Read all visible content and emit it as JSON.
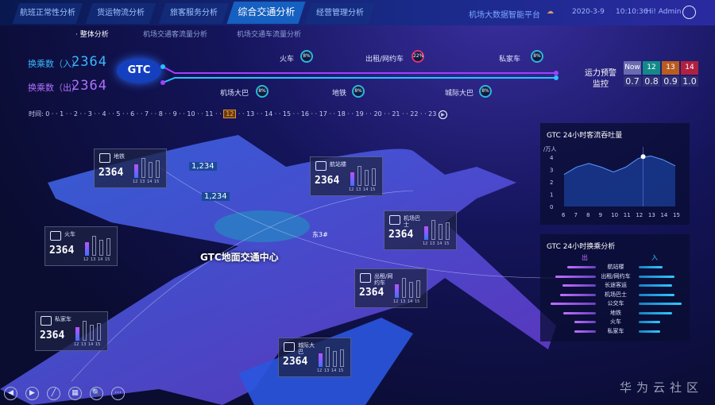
{
  "nav": {
    "tabs": [
      "航班正常性分析",
      "货运物流分析",
      "旅客服务分析",
      "综合交通分析",
      "经营管理分析"
    ],
    "active": "综合交通分析",
    "platform": "机场大数据智能平台",
    "date": "2020-3-9",
    "time": "10:10:36",
    "user": "Hi! Admin"
  },
  "subtabs": [
    "· 整体分析",
    "机场交通客流量分析",
    "机场交通车流量分析"
  ],
  "summary": {
    "in_label": "换乘数（入）",
    "in_value": "2364",
    "out_label": "换乘数（出）",
    "out_value": "2364",
    "hub": "GTC"
  },
  "stops_top": [
    {
      "name": "火车",
      "pct": "8%"
    },
    {
      "name": "出租/网约车",
      "pct": "22%"
    },
    {
      "name": "私家车",
      "pct": "8%"
    }
  ],
  "stops_bottom": [
    {
      "name": "机场大巴",
      "pct": "8%"
    },
    {
      "name": "地铁",
      "pct": "8%"
    },
    {
      "name": "城际大巴",
      "pct": "8%"
    }
  ],
  "warning": {
    "label1": "运力预警",
    "label2": "监控",
    "headers": [
      "Now",
      "12",
      "13",
      "14"
    ],
    "values": [
      "0.7",
      "0.8",
      "0.9",
      "1.0"
    ],
    "colors": [
      "#6a6ab0",
      "#138a8a",
      "#b85c20",
      "#b02040"
    ]
  },
  "timeline": {
    "label": "时间:",
    "hours": [
      "0",
      "1",
      "2",
      "3",
      "4",
      "5",
      "6",
      "7",
      "8",
      "9",
      "10",
      "11",
      "12",
      "13",
      "14",
      "15",
      "16",
      "17",
      "18",
      "19",
      "20",
      "21",
      "22",
      "23"
    ],
    "current": "12"
  },
  "map": {
    "center_label": "GTC地面交通中心",
    "flags": [
      "1,234",
      "1,234"
    ],
    "inner_label": "东3#"
  },
  "cards": [
    {
      "name": "地铁",
      "value": "2364",
      "ticks": [
        "12",
        "13",
        "14",
        "15"
      ],
      "bars": [
        0.6,
        0.9,
        0.7,
        0.8
      ]
    },
    {
      "name": "航站楼",
      "value": "2364",
      "ticks": [
        "12",
        "13",
        "14",
        "15"
      ],
      "bars": [
        0.6,
        0.9,
        0.7,
        0.8
      ]
    },
    {
      "name": "机场巴士",
      "value": "2364",
      "ticks": [
        "12",
        "13",
        "14",
        "15"
      ],
      "bars": [
        0.6,
        0.9,
        0.7,
        0.8
      ]
    },
    {
      "name": "火车",
      "value": "2364",
      "ticks": [
        "12",
        "13",
        "14",
        "15"
      ],
      "bars": [
        0.6,
        0.9,
        0.7,
        0.8
      ]
    },
    {
      "name": "出租/网约车",
      "value": "2364",
      "ticks": [
        "12",
        "13",
        "14",
        "15"
      ],
      "bars": [
        0.6,
        0.9,
        0.7,
        0.8
      ]
    },
    {
      "name": "私家车",
      "value": "2364",
      "ticks": [
        "12",
        "13",
        "14",
        "15"
      ],
      "bars": [
        0.6,
        0.9,
        0.7,
        0.8
      ]
    },
    {
      "name": "城际大巴",
      "value": "2364",
      "ticks": [
        "12",
        "13",
        "14",
        "15"
      ],
      "bars": [
        0.6,
        0.9,
        0.7,
        0.8
      ]
    }
  ],
  "chart_data": [
    {
      "type": "area",
      "title": "GTC 24小时客流吞吐量",
      "ylabel": "/万人",
      "x": [
        6,
        7,
        8,
        9,
        10,
        11,
        12,
        13,
        14,
        15
      ],
      "y": [
        2.6,
        3.2,
        3.5,
        3.2,
        2.8,
        3.2,
        3.9,
        4.1,
        3.8,
        3.3
      ],
      "ylim": [
        0,
        4
      ],
      "yticks": [
        "0",
        "1",
        "2",
        "3",
        "4"
      ],
      "highlight_x": 12.4,
      "color": "#5a9aff"
    },
    {
      "type": "bar",
      "title": "GTC 24小时换乘分析",
      "out_label": "出",
      "in_label": "入",
      "categories": [
        "航站楼",
        "出租/网约车",
        "长途客运",
        "机场巴士",
        "公交车",
        "地铁",
        "火车",
        "私家车"
      ],
      "series": [
        {
          "name": "出",
          "values": [
            0.6,
            0.85,
            0.7,
            0.75,
            0.95,
            0.68,
            0.45,
            0.45
          ]
        },
        {
          "name": "入",
          "values": [
            0.5,
            0.75,
            0.7,
            0.75,
            0.9,
            0.7,
            0.45,
            0.45
          ]
        }
      ]
    }
  ],
  "toolbar": [
    "◀",
    "▶",
    "╱",
    "▦",
    "🔍",
    "···"
  ],
  "watermark": "华为云社区"
}
